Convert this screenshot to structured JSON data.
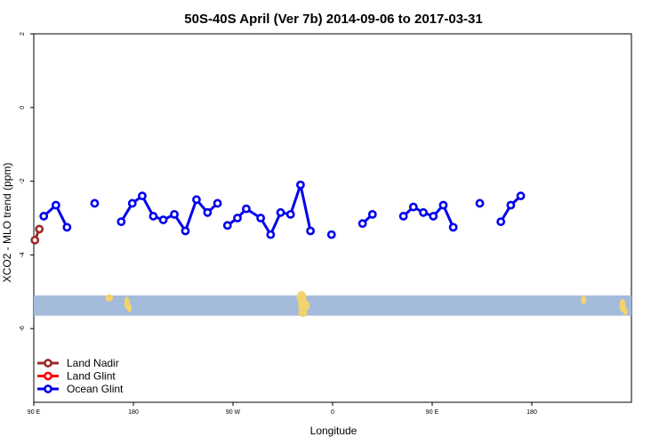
{
  "chart_data": {
    "type": "line",
    "title": "50S-40S April (Ver 7b)   2014-09-06 to 2017-03-31",
    "xlabel": "Longitude",
    "ylabel": "XCO2 - MLO trend (ppm)",
    "xlim": [
      -90,
      180
    ],
    "ylim": [
      -8,
      2
    ],
    "x_ticks": [
      {
        "pos": -90,
        "label": "90 E"
      },
      {
        "pos": -45,
        "label": "180"
      },
      {
        "pos": 0,
        "label": "90 W"
      },
      {
        "pos": 45,
        "label": "0"
      },
      {
        "pos": 90,
        "label": "90 E"
      },
      {
        "pos": 135,
        "label": "180"
      }
    ],
    "y_ticks": [
      {
        "pos": 2,
        "label": "2"
      },
      {
        "pos": 0,
        "label": "0"
      },
      {
        "pos": -2,
        "label": "-2"
      },
      {
        "pos": -4,
        "label": "-4"
      },
      {
        "pos": -6,
        "label": "-6"
      }
    ],
    "grid": false,
    "legend_position": "bottom-left",
    "land_band": {
      "y_top": -5.1,
      "y_bottom": -5.65,
      "color": "#a5bbdc",
      "land_color": "#f3d36b"
    },
    "series": [
      {
        "name": "Land Nadir",
        "color": "#9b2a2a",
        "segments": [
          [
            [
              -89.5,
              -3.6
            ],
            [
              -87.5,
              -3.3
            ]
          ]
        ]
      },
      {
        "name": "Land Glint",
        "color": "#ff0000",
        "segments": []
      },
      {
        "name": "Ocean Glint",
        "color": "#0000ee",
        "segments": [
          [
            [
              -85.5,
              -2.95
            ],
            [
              -80.0,
              -2.65
            ],
            [
              -75.0,
              -3.25
            ]
          ],
          [
            [
              -62.5,
              -2.6
            ]
          ],
          [
            [
              -50.5,
              -3.1
            ],
            [
              -45.5,
              -2.6
            ],
            [
              -41.0,
              -2.4
            ],
            [
              -36.0,
              -2.95
            ],
            [
              -31.5,
              -3.05
            ],
            [
              -26.5,
              -2.9
            ],
            [
              -21.5,
              -3.35
            ],
            [
              -16.5,
              -2.5
            ],
            [
              -11.5,
              -2.85
            ],
            [
              -7.0,
              -2.6
            ]
          ],
          [
            [
              -2.5,
              -3.2
            ],
            [
              2.0,
              -3.0
            ],
            [
              6.0,
              -2.75
            ],
            [
              12.5,
              -3.0
            ],
            [
              17.0,
              -3.45
            ],
            [
              21.5,
              -2.85
            ],
            [
              26.0,
              -2.9
            ],
            [
              30.5,
              -2.1
            ],
            [
              35.0,
              -3.35
            ]
          ],
          [
            [
              44.5,
              -3.45
            ]
          ],
          [
            [
              58.5,
              -3.15
            ],
            [
              63.0,
              -2.9
            ]
          ],
          [
            [
              77.0,
              -2.95
            ],
            [
              81.5,
              -2.7
            ],
            [
              86.0,
              -2.85
            ],
            [
              90.5,
              -2.95
            ],
            [
              95.0,
              -2.65
            ],
            [
              99.5,
              -3.25
            ]
          ],
          [
            [
              111.5,
              -2.6
            ]
          ],
          [
            [
              121.0,
              -3.1
            ],
            [
              125.5,
              -2.65
            ],
            [
              130.0,
              -2.4
            ]
          ]
        ]
      }
    ]
  }
}
